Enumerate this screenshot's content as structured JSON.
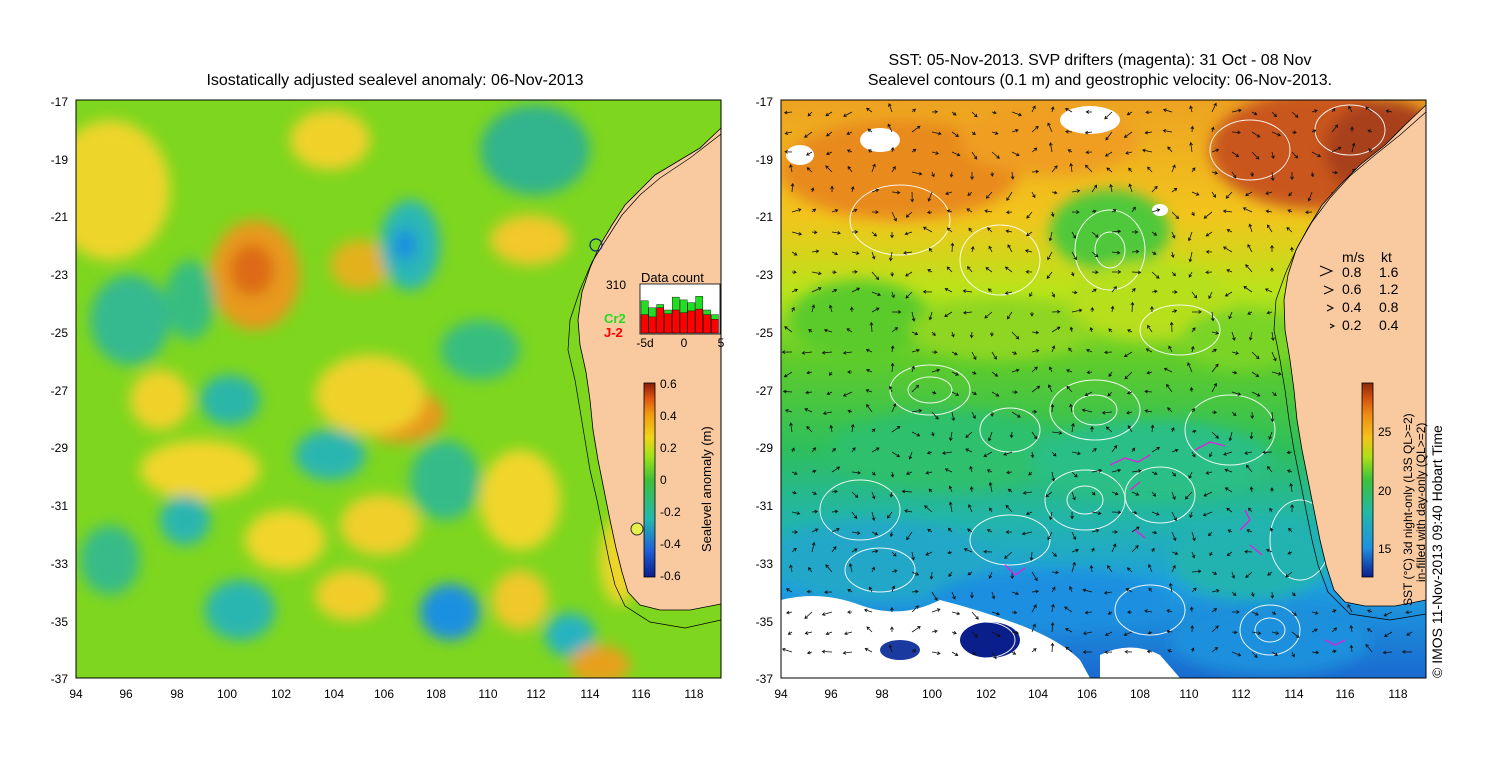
{
  "left_panel": {
    "title": "Isostatically adjusted sealevel anomaly: 06-Nov-2013",
    "x_ticks": [
      "94",
      "96",
      "98",
      "100",
      "102",
      "104",
      "106",
      "108",
      "110",
      "112",
      "114",
      "116",
      "118"
    ],
    "y_ticks": [
      "-17",
      "-19",
      "-21",
      "-23",
      "-25",
      "-27",
      "-29",
      "-31",
      "-33",
      "-35",
      "-37"
    ],
    "colorbar": {
      "label": "Sealevel anomaly (m)",
      "ticks": [
        "0.6",
        "0.4",
        "0.2",
        "0",
        "-0.2",
        "-0.4",
        "-0.6"
      ]
    },
    "data_count": {
      "title": "Data count",
      "max_label": "310",
      "series_a": "Cr2",
      "series_b": "J-2",
      "series_a_color": "#22dd22",
      "series_b_color": "#ff0000",
      "x_ticks": [
        "-5d",
        "0",
        "5"
      ]
    }
  },
  "right_panel": {
    "title_line1": "SST: 05-Nov-2013. SVP drifters (magenta): 31 Oct - 08 Nov",
    "title_line2": "Sealevel contours (0.1 m) and geostrophic velocity: 06-Nov-2013.",
    "x_ticks": [
      "94",
      "96",
      "98",
      "100",
      "102",
      "104",
      "106",
      "108",
      "110",
      "112",
      "114",
      "116",
      "118"
    ],
    "y_ticks": [
      "-17",
      "-19",
      "-21",
      "-23",
      "-25",
      "-27",
      "-29",
      "-31",
      "-33",
      "-35",
      "-37"
    ],
    "velocity_legend": {
      "header_ms": "m/s",
      "header_kt": "kt",
      "rows": [
        {
          "ms": "0.8",
          "kt": "1.6"
        },
        {
          "ms": "0.6",
          "kt": "1.2"
        },
        {
          "ms": "0.4",
          "kt": "0.8"
        },
        {
          "ms": "0.2",
          "kt": "0.4"
        }
      ]
    },
    "colorbar": {
      "label_line1": "SST (°C) 3d night-only (L3S QL>=2)",
      "label_line2": "in-filled with day-only (QL>=2)",
      "ticks": [
        "25",
        "20",
        "15"
      ]
    },
    "credit": "© IMOS 11-Nov-2013 09:40 Hobart Time"
  },
  "colors": {
    "land": "#f9c9a0",
    "sla_scale": [
      "#0a1e8c",
      "#1f8fe0",
      "#24b9b0",
      "#3fc03a",
      "#9be21a",
      "#f2d41a",
      "#f09a10",
      "#e05512",
      "#8a1c08"
    ],
    "sst_scale": [
      "#0a1e8c",
      "#1f90e0",
      "#22b8a8",
      "#3cc23c",
      "#aee018",
      "#f5c21a",
      "#ee8a14",
      "#cc4c10",
      "#8a2a08"
    ],
    "drifter": "#dd22dd"
  }
}
